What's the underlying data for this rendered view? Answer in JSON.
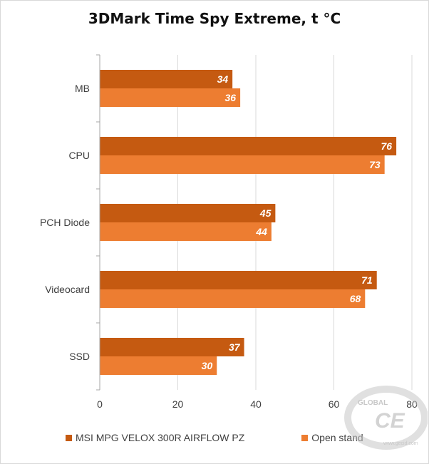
{
  "chart_data": {
    "type": "bar",
    "orientation": "horizontal",
    "title": "3DMark Time Spy Extreme, t °C",
    "categories": [
      "MB",
      "CPU",
      "PCH Diode",
      "Videocard",
      "SSD"
    ],
    "series": [
      {
        "name": "MSI MPG VELOX 300R AIRFLOW PZ",
        "values": [
          34,
          76,
          45,
          71,
          37
        ],
        "color": "#c55a11"
      },
      {
        "name": "Open stand",
        "values": [
          36,
          73,
          44,
          68,
          30
        ],
        "color": "#ed7d31"
      }
    ],
    "xlim": [
      0,
      80
    ],
    "xticks": [
      "0",
      "20",
      "40",
      "60",
      "80"
    ],
    "grid": true,
    "legend_position": "bottom",
    "xlabel": "",
    "ylabel": ""
  },
  "watermark": {
    "brand": "GLOBAL",
    "url": "www.gecid.com"
  }
}
